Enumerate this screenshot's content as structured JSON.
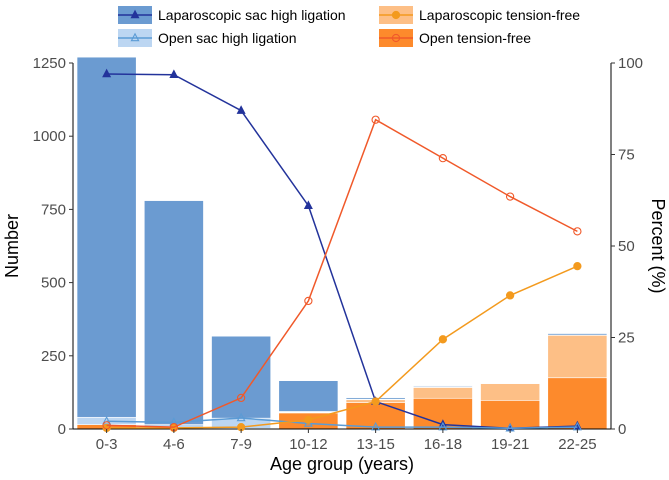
{
  "chart_data": {
    "type": "bar",
    "categories": [
      "0-3",
      "4-6",
      "7-9",
      "10-12",
      "13-15",
      "16-18",
      "19-21",
      "22-25"
    ],
    "xlabel": "Age group (years)",
    "ylabel": "Number",
    "y2label": "Percent (%)",
    "ylim": [
      0,
      1250
    ],
    "y2lim": [
      0,
      100
    ],
    "y_ticks": [
      0,
      250,
      500,
      750,
      1000,
      1250
    ],
    "y2_ticks": [
      0,
      25,
      50,
      75,
      100
    ],
    "bars": [
      {
        "name": "Laparoscopic sac high ligation",
        "color": "#6b9bd1",
        "values": [
          1230,
          765,
          280,
          105,
          5,
          3,
          1,
          5
        ]
      },
      {
        "name": "Open sac high ligation",
        "color": "#bcd6f2",
        "values": [
          25,
          15,
          35,
          3,
          2,
          2,
          1,
          1
        ]
      },
      {
        "name": "Laparoscopic tension-free",
        "color": "#fdbf86",
        "values": [
          0,
          0,
          2,
          2,
          10,
          37,
          57,
          145
        ]
      },
      {
        "name": "Open tension-free",
        "color": "#fd8a2c",
        "values": [
          15,
          0,
          0,
          55,
          90,
          105,
          98,
          175
        ]
      }
    ],
    "lines": [
      {
        "name": "Laparoscopic sac high ligation",
        "color": "#23339b",
        "marker": "triangle-filled",
        "values": [
          97,
          96.8,
          87,
          61,
          7.5,
          1.2,
          0.2,
          0.8
        ]
      },
      {
        "name": "Open sac high ligation",
        "color": "#5b9bd5",
        "marker": "triangle-open",
        "values": [
          2.1,
          1.8,
          3,
          1.5,
          0.5,
          0.5,
          0.2,
          0.5
        ]
      },
      {
        "name": "Laparoscopic tension-free",
        "color": "#f39a1e",
        "marker": "circle-filled",
        "values": [
          0.3,
          0.3,
          0.5,
          2.5,
          7.5,
          24.5,
          36.5,
          44.5
        ]
      },
      {
        "name": "Open tension-free",
        "color": "#f0592a",
        "marker": "circle-open",
        "values": [
          1,
          0.5,
          8.5,
          35,
          84.5,
          74,
          63.5,
          54
        ]
      }
    ],
    "legend_position": "top"
  }
}
